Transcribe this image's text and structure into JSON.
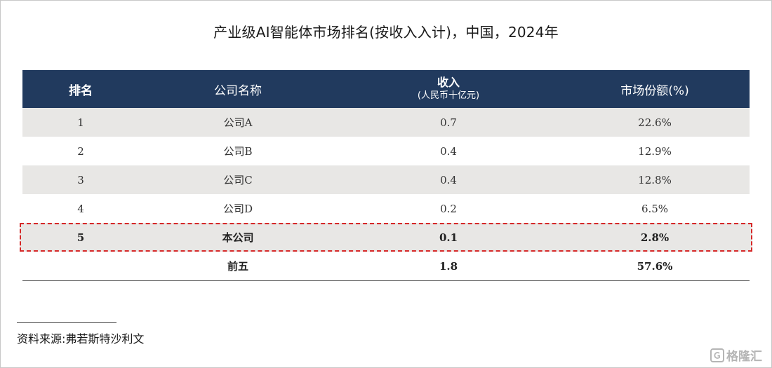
{
  "title": "产业级AI智能体市场排名(按收入入计)，中国，2024年",
  "table": {
    "headers": {
      "rank": "排名",
      "company": "公司名称",
      "revenue": "收入",
      "revenue_unit": "(人民币十亿元)",
      "share": "市场份额(%)"
    },
    "rows": [
      {
        "rank": "1",
        "company": "公司A",
        "revenue": "0.7",
        "share": "22.6%"
      },
      {
        "rank": "2",
        "company": "公司B",
        "revenue": "0.4",
        "share": "12.9%"
      },
      {
        "rank": "3",
        "company": "公司C",
        "revenue": "0.4",
        "share": "12.8%"
      },
      {
        "rank": "4",
        "company": "公司D",
        "revenue": "0.2",
        "share": "6.5%"
      },
      {
        "rank": "5",
        "company": "本公司",
        "revenue": "0.1",
        "share": "2.8%"
      }
    ],
    "total": {
      "label": "前五",
      "revenue": "1.8",
      "share": "57.6%"
    }
  },
  "source": "资料来源:弗若斯特沙利文",
  "watermark": "格隆汇",
  "colors": {
    "header_bg": "#213a5e",
    "row_shade": "#e8e7e5",
    "highlight_border": "#d62828"
  }
}
